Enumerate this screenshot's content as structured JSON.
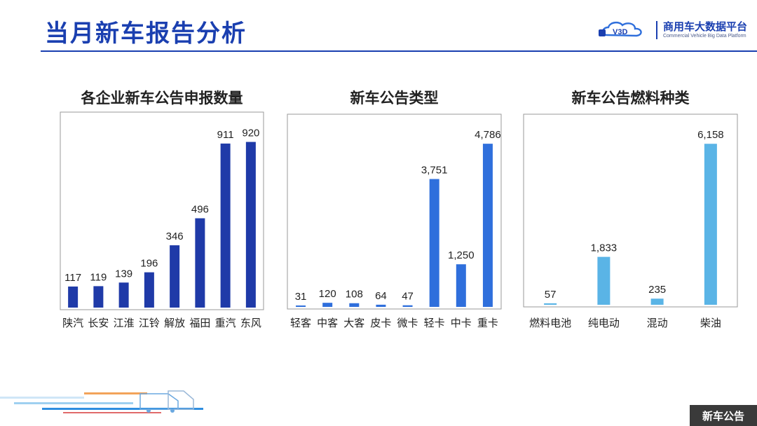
{
  "page": {
    "title": "当月新车报告分析",
    "footer_tag": "新车公告",
    "brand": {
      "name": "商用车大数据平台",
      "subtitle": "Commercial Vehicle Big Data Platform",
      "logo_text": "V3D"
    }
  },
  "colors": {
    "title_blue": "#1a3fb0",
    "chart1_bar": "#1f3aa8",
    "chart2_bar": "#2f6fdc",
    "chart3_bar": "#5ab4e6"
  },
  "chart_data": [
    {
      "type": "bar",
      "title": "各企业新车公告申报数量",
      "categories": [
        "陕汽",
        "长安",
        "江淮",
        "江铃",
        "解放",
        "福田",
        "重汽",
        "东风"
      ],
      "values": [
        117,
        119,
        139,
        196,
        346,
        496,
        911,
        920
      ],
      "value_labels": [
        "117",
        "119",
        "139",
        "196",
        "346",
        "496",
        "911",
        "920"
      ],
      "ylim": [
        0,
        1000
      ],
      "grid": false
    },
    {
      "type": "bar",
      "title": "新车公告类型",
      "categories": [
        "轻客",
        "中客",
        "大客",
        "皮卡",
        "微卡",
        "轻卡",
        "中卡",
        "重卡"
      ],
      "values": [
        31,
        120,
        108,
        64,
        47,
        3751,
        1250,
        4786
      ],
      "value_labels": [
        "31",
        "120",
        "108",
        "64",
        "47",
        "3,751",
        "1,250",
        "4,786"
      ],
      "ylim": [
        0,
        5200
      ],
      "grid": false
    },
    {
      "type": "bar",
      "title": "新车公告燃料种类",
      "categories": [
        "燃料电池",
        "纯电动",
        "混动",
        "柴油"
      ],
      "values": [
        57,
        1833,
        235,
        6158
      ],
      "value_labels": [
        "57",
        "1,833",
        "235",
        "6,158"
      ],
      "ylim": [
        0,
        6700
      ],
      "grid": false
    }
  ]
}
